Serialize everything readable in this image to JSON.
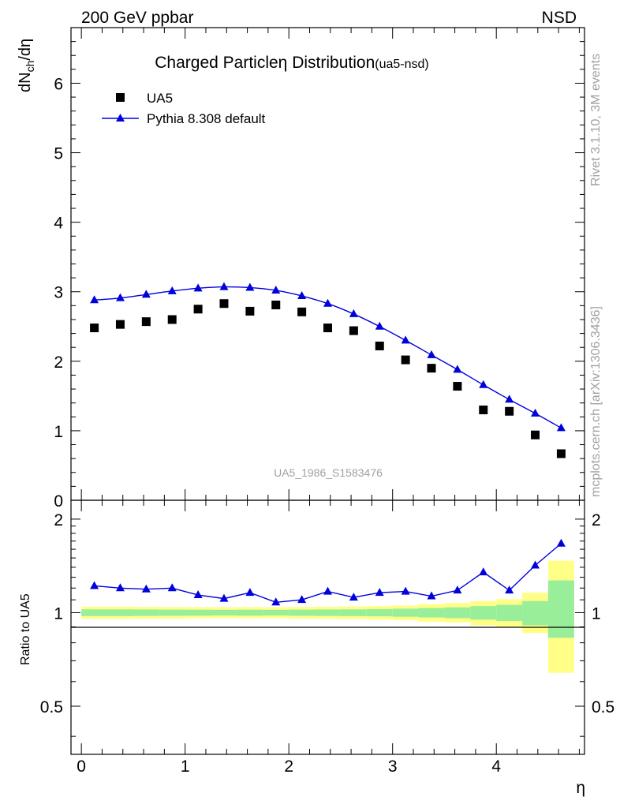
{
  "header": {
    "left": "200 GeV ppbar",
    "right": "NSD"
  },
  "side": {
    "right_top": "Rivet 3.1.10,  3M events",
    "right_bottom": "mcplots.cern.ch [arXiv:1306.3436]"
  },
  "colors": {
    "data": "#000000",
    "mc": "#0000dd",
    "band_inner": "#99ee99",
    "band_outer": "#ffff88",
    "watermark": "#a0a0a0"
  },
  "chart_data": [
    {
      "type": "scatter",
      "title": "Charged Particle",
      "title_symbol": "η",
      "title_rest": "Distribution",
      "title_tag": "(ua5-nsd)",
      "ylabel_main": "dN",
      "ylabel_sub": "ch",
      "ylabel_rest": "/dη",
      "watermark": "UA5_1986_S1583476",
      "xlim": [
        -0.1,
        4.85
      ],
      "ylim": [
        0,
        6.8
      ],
      "yticks": [
        "0",
        "1",
        "2",
        "3",
        "4",
        "5",
        "6"
      ],
      "grid": false,
      "legend_position": "top-left",
      "x": [
        0.125,
        0.375,
        0.625,
        0.875,
        1.125,
        1.375,
        1.625,
        1.875,
        2.125,
        2.375,
        2.625,
        2.875,
        3.125,
        3.375,
        3.625,
        3.875,
        4.125,
        4.375,
        4.625
      ],
      "series": [
        {
          "name": "UA5",
          "marker": "square",
          "values": [
            2.48,
            2.53,
            2.57,
            2.6,
            2.75,
            2.83,
            2.72,
            2.81,
            2.71,
            2.48,
            2.44,
            2.22,
            2.02,
            1.9,
            1.64,
            1.3,
            1.28,
            0.94,
            0.67
          ]
        },
        {
          "name": "Pythia 8.308 default",
          "marker": "triangle",
          "values": [
            2.88,
            2.91,
            2.96,
            3.01,
            3.05,
            3.07,
            3.06,
            3.02,
            2.94,
            2.83,
            2.68,
            2.5,
            2.3,
            2.09,
            1.88,
            1.66,
            1.45,
            1.25,
            1.04
          ]
        }
      ]
    },
    {
      "type": "line",
      "ylabel": "Ratio to UA5",
      "xlabel": "η",
      "xlim": [
        -0.1,
        4.85
      ],
      "ylim": [
        0.35,
        2.3
      ],
      "xticks": [
        "0",
        "1",
        "2",
        "3",
        "4"
      ],
      "yticks": [
        "0.5",
        "1",
        "2"
      ],
      "grid": false,
      "x": [
        0.125,
        0.375,
        0.625,
        0.875,
        1.125,
        1.375,
        1.625,
        1.875,
        2.125,
        2.375,
        2.625,
        2.875,
        3.125,
        3.375,
        3.625,
        3.875,
        4.125,
        4.375,
        4.625
      ],
      "bins": [
        [
          0,
          0.25
        ],
        [
          0.25,
          0.5
        ],
        [
          0.5,
          0.75
        ],
        [
          0.75,
          1
        ],
        [
          1,
          1.25
        ],
        [
          1.25,
          1.5
        ],
        [
          1.5,
          1.75
        ],
        [
          1.75,
          2
        ],
        [
          2,
          2.25
        ],
        [
          2.25,
          2.5
        ],
        [
          2.5,
          2.75
        ],
        [
          2.75,
          3
        ],
        [
          3,
          3.25
        ],
        [
          3.25,
          3.5
        ],
        [
          3.5,
          3.75
        ],
        [
          3.75,
          4
        ],
        [
          4,
          4.25
        ],
        [
          4.25,
          4.5
        ],
        [
          4.5,
          4.75
        ]
      ],
      "band_inner": [
        [
          0.975,
          1.025
        ],
        [
          0.975,
          1.025
        ],
        [
          0.976,
          1.024
        ],
        [
          0.977,
          1.023
        ],
        [
          0.978,
          1.022
        ],
        [
          0.979,
          1.021
        ],
        [
          0.978,
          1.022
        ],
        [
          0.979,
          1.021
        ],
        [
          0.977,
          1.023
        ],
        [
          0.976,
          1.024
        ],
        [
          0.975,
          1.025
        ],
        [
          0.973,
          1.027
        ],
        [
          0.97,
          1.03
        ],
        [
          0.965,
          1.035
        ],
        [
          0.96,
          1.04
        ],
        [
          0.95,
          1.05
        ],
        [
          0.94,
          1.06
        ],
        [
          0.91,
          1.09
        ],
        [
          0.83,
          1.27
        ]
      ],
      "band_outer": [
        [
          0.955,
          1.045
        ],
        [
          0.955,
          1.045
        ],
        [
          0.956,
          1.044
        ],
        [
          0.957,
          1.043
        ],
        [
          0.958,
          1.042
        ],
        [
          0.959,
          1.041
        ],
        [
          0.958,
          1.042
        ],
        [
          0.959,
          1.041
        ],
        [
          0.957,
          1.043
        ],
        [
          0.955,
          1.045
        ],
        [
          0.953,
          1.047
        ],
        [
          0.95,
          1.05
        ],
        [
          0.945,
          1.055
        ],
        [
          0.935,
          1.065
        ],
        [
          0.93,
          1.075
        ],
        [
          0.91,
          1.09
        ],
        [
          0.895,
          1.105
        ],
        [
          0.86,
          1.16
        ],
        [
          0.64,
          1.47
        ]
      ],
      "series": [
        {
          "name": "Pythia 8.308 default",
          "marker": "triangle",
          "values": [
            1.22,
            1.2,
            1.19,
            1.2,
            1.14,
            1.11,
            1.16,
            1.08,
            1.1,
            1.17,
            1.12,
            1.16,
            1.17,
            1.13,
            1.18,
            1.35,
            1.18,
            1.42,
            1.67
          ]
        }
      ]
    }
  ]
}
